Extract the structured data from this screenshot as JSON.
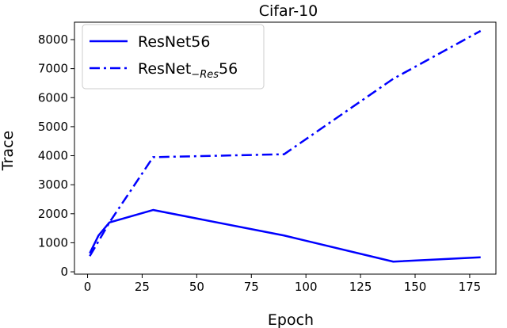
{
  "chart_data": {
    "type": "line",
    "title": "Cifar-10",
    "xlabel": "Epoch",
    "ylabel": "Trace",
    "xlim": [
      -6,
      187
    ],
    "ylim": [
      -80,
      8600
    ],
    "xticks": [
      0,
      25,
      50,
      75,
      100,
      125,
      150,
      175
    ],
    "yticks": [
      0,
      1000,
      2000,
      3000,
      4000,
      5000,
      6000,
      7000,
      8000
    ],
    "grid": false,
    "legend_position": "upper-left",
    "series": [
      {
        "name": "ResNet56",
        "name_main": "ResNet56",
        "name_sub": "",
        "name_suffix": "",
        "style": "solid",
        "color": "#0000ff",
        "x": [
          1,
          5,
          10,
          30,
          90,
          140,
          180
        ],
        "y": [
          640,
          1250,
          1700,
          2130,
          1250,
          350,
          500
        ]
      },
      {
        "name": "ResNet−Res56",
        "name_main": "ResNet",
        "name_sub": "−Res",
        "name_suffix": "56",
        "style": "dashdot",
        "color": "#0000ff",
        "x": [
          1,
          5,
          10,
          30,
          90,
          140,
          180
        ],
        "y": [
          540,
          1050,
          1700,
          3950,
          4050,
          6650,
          8300
        ]
      }
    ]
  }
}
